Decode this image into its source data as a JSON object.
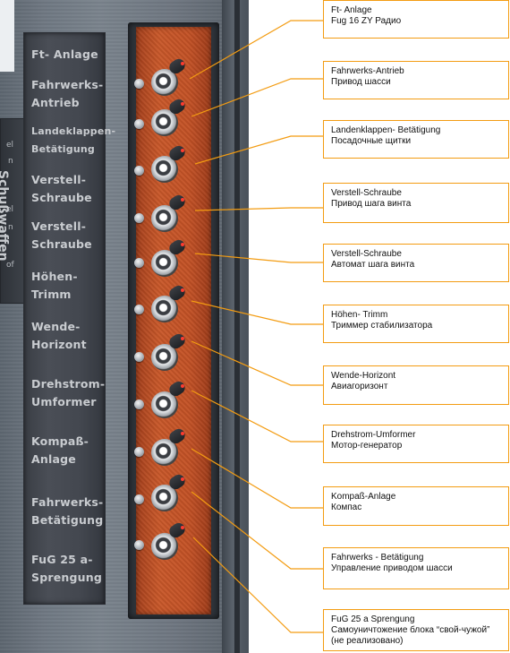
{
  "placard_labels": [
    "Ft- Anlage",
    "Fahrwerks-\nAntrieb",
    "Landeklappen-\nBetätigung",
    "Verstell-\nSchraube",
    "Verstell-\nSchraube",
    "Höhen-\nTrimm",
    "Wende-\nHorizont",
    "Drehstrom-\nUmformer",
    "Kompaß-\nAnlage",
    "Fahrwerks-\nBetätigung",
    "FuG 25 a-\nSprengung"
  ],
  "side_plate": {
    "vertical_text": "Schußwaffen",
    "fragments": [
      "el",
      "n",
      "el",
      "n",
      "of"
    ]
  },
  "callouts": [
    {
      "de": "Ft- Anlage",
      "ru": "Fug 16 ZY Радио"
    },
    {
      "de": "Fahrwerks-Antrieb",
      "ru": "Привод шасси"
    },
    {
      "de": "Landenklappen- Betätigung",
      "ru": "Посадочные щитки"
    },
    {
      "de": "Verstell-Schraube",
      "ru": "Привод шага винта"
    },
    {
      "de": "Verstell-Schraube",
      "ru": "Автомат шага винта"
    },
    {
      "de": "Höhen- Trimm",
      "ru": "Триммер стабилизатора"
    },
    {
      "de": "Wende-Horizont",
      "ru": "Авиагоризонт"
    },
    {
      "de": "Drehstrom-Umformer",
      "ru": "Мотор-генератор"
    },
    {
      "de": "Kompaß-Anlage",
      "ru": "Компас"
    },
    {
      "de": "Fahrwerks - Betätigung",
      "ru": "Управление приводом шасси"
    },
    {
      "de": "FuG 25 a Sprengung",
      "ru": "Самоуничтожение блока “свой-чужой”",
      "note": "(не реализовано)"
    }
  ],
  "colors": {
    "callout_border": "#f39c12",
    "leader_line": "#f39c12",
    "breaker_panel": "#c4522a",
    "indicator_dot": "#ff3b2f"
  }
}
